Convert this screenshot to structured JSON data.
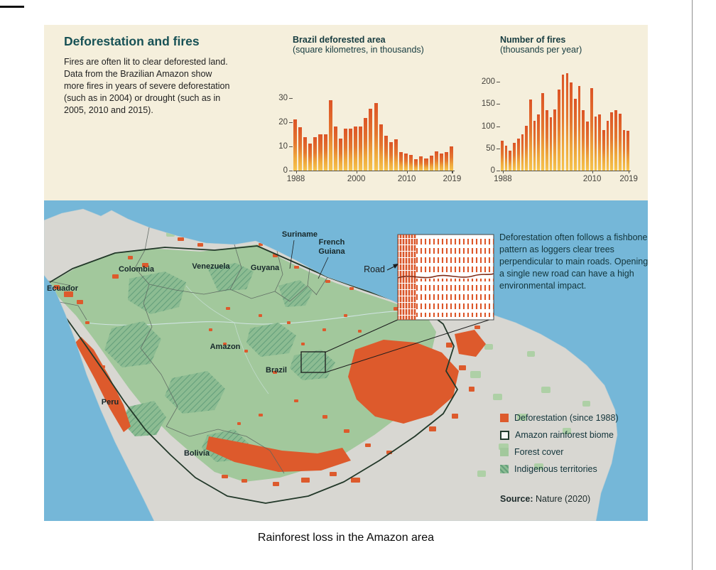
{
  "page": {
    "caption": "Rainforest loss in the Amazon area"
  },
  "intro": {
    "title": "Deforestation and fires",
    "body": "Fires are often lit to clear deforested land. Data from the Brazilian Amazon show more fires in years of severe deforestation (such as in 2004) or drought (such as in 2005, 2010 and 2015)."
  },
  "chart_data": [
    {
      "type": "bar",
      "title": "Brazil deforested area",
      "subtitle": "(square kilometres, in thousands)",
      "x_start": 1988,
      "years": [
        1988,
        1989,
        1990,
        1991,
        1992,
        1993,
        1994,
        1995,
        1996,
        1997,
        1998,
        1999,
        2000,
        2001,
        2002,
        2003,
        2004,
        2005,
        2006,
        2007,
        2008,
        2009,
        2010,
        2011,
        2012,
        2013,
        2014,
        2015,
        2016,
        2017,
        2018,
        2019
      ],
      "values": [
        21.1,
        17.8,
        13.7,
        11.0,
        13.8,
        14.9,
        14.9,
        29.1,
        18.2,
        13.2,
        17.4,
        17.3,
        18.2,
        18.2,
        21.7,
        25.4,
        27.8,
        19.0,
        14.3,
        11.7,
        12.9,
        7.5,
        7.0,
        6.4,
        4.6,
        5.9,
        5.0,
        6.2,
        7.9,
        6.9,
        7.5,
        10.1
      ],
      "ylim": [
        0,
        41
      ],
      "yticks": [
        0,
        10,
        20,
        30
      ],
      "xticks": [
        1988,
        2000,
        2010,
        2019
      ],
      "grid": false,
      "legend": "none"
    },
    {
      "type": "bar",
      "title": "Number of fires",
      "subtitle": "(thousands per year)",
      "x_start": 1988,
      "years": [
        1988,
        1989,
        1990,
        1991,
        1992,
        1993,
        1994,
        1995,
        1996,
        1997,
        1998,
        1999,
        2000,
        2001,
        2002,
        2003,
        2004,
        2005,
        2006,
        2007,
        2008,
        2009,
        2010,
        2011,
        2012,
        2013,
        2014,
        2015,
        2016,
        2017,
        2018,
        2019
      ],
      "values": [
        68,
        56,
        45,
        62,
        72,
        82,
        101,
        160,
        112,
        126,
        175,
        136,
        120,
        137,
        182,
        216,
        220,
        198,
        162,
        190,
        136,
        110,
        186,
        122,
        126,
        92,
        112,
        132,
        136,
        128,
        92,
        90
      ],
      "ylim": [
        0,
        224
      ],
      "yticks": [
        0,
        50,
        100,
        150,
        200
      ],
      "xticks": [
        1988,
        2010,
        2019
      ],
      "grid": false,
      "legend": "none"
    }
  ],
  "map": {
    "labels": {
      "colombia": "Colombia",
      "ecuador": "Ecuador",
      "venezuela": "Venezuela",
      "guyana": "Guyana",
      "suriname": "Suriname",
      "french": "French",
      "guiana": "Guiana",
      "amazon": "Amazon",
      "brazil": "Brazil",
      "peru": "Peru",
      "bolivia": "Bolivia"
    },
    "inset": {
      "road_label": "Road",
      "annotation": "Deforestation often follows a fishbone pattern as loggers clear trees perpendicular to main roads. Opening a single new road can have a high environmental impact."
    },
    "legend": [
      {
        "label": "Deforestation (since 1988)",
        "swatch": "deforestation"
      },
      {
        "label": "Amazon rainforest biome",
        "swatch": "biome-outline"
      },
      {
        "label": "Forest cover",
        "swatch": "forest"
      },
      {
        "label": "Indigenous territories",
        "swatch": "indigenous-hatch"
      }
    ],
    "source_label": "Source:",
    "source_value": "Nature (2020)"
  },
  "colors": {
    "panel_background": "#f5efdc",
    "title_teal": "#175155",
    "bar_top": "#dc5426",
    "bar_bottom": "#f6c44e",
    "ocean": "#75b7d8",
    "land": "#d8d7d2",
    "forest": "#a2c89c",
    "indigenous": "#8cbc92",
    "deforestation": "#dd5a2c"
  }
}
